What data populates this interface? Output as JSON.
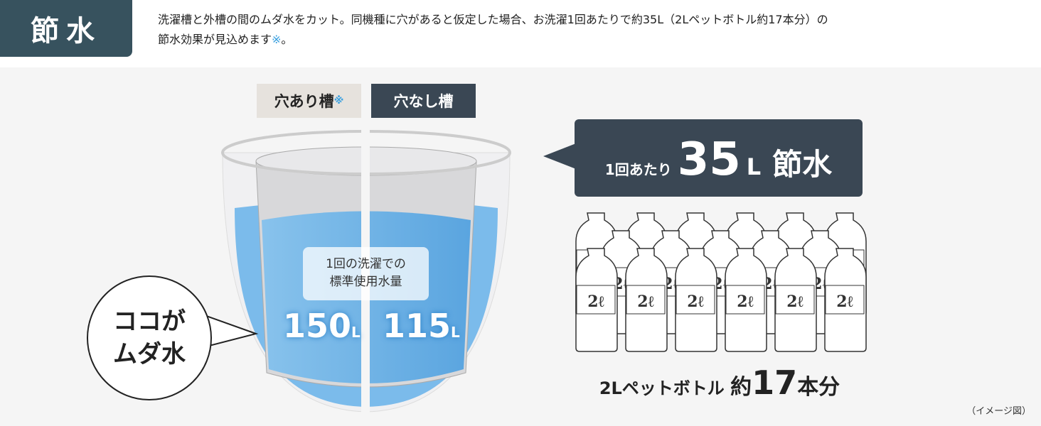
{
  "badge": "節水",
  "lead": {
    "line1": "洗濯槽と外槽の間のムダ水をカット。同機種に穴があると仮定した場合、お洗濯1回あたりで約35L（2Lペットボトル約17本分）の",
    "line2": "節水効果が見込めます",
    "mark": "※",
    "end": "。"
  },
  "tabs": {
    "with_holes": "穴あり槽",
    "with_holes_mark": "※",
    "no_holes": "穴なし槽"
  },
  "info": {
    "line1": "1回の洗濯での",
    "line2": "標準使用水量"
  },
  "amounts": {
    "with_holes": "150",
    "no_holes": "115",
    "unit": "L"
  },
  "callout": {
    "line1": "ココが",
    "line2": "ムダ水"
  },
  "saving": {
    "prefix": "1回あたり",
    "number": "35",
    "unit": "L",
    "suffix": "節水"
  },
  "bottles": {
    "count": 17,
    "label": "2ℓ"
  },
  "bottom": {
    "text": "2Lペットボトル",
    "approx": "約",
    "number": "17",
    "suffix": "本分"
  },
  "note": "（イメージ図）",
  "colors": {
    "badge": "#37525e",
    "dark_box": "#3a4754",
    "water": "#6cb4ea",
    "mark": "#3aa0e0"
  }
}
